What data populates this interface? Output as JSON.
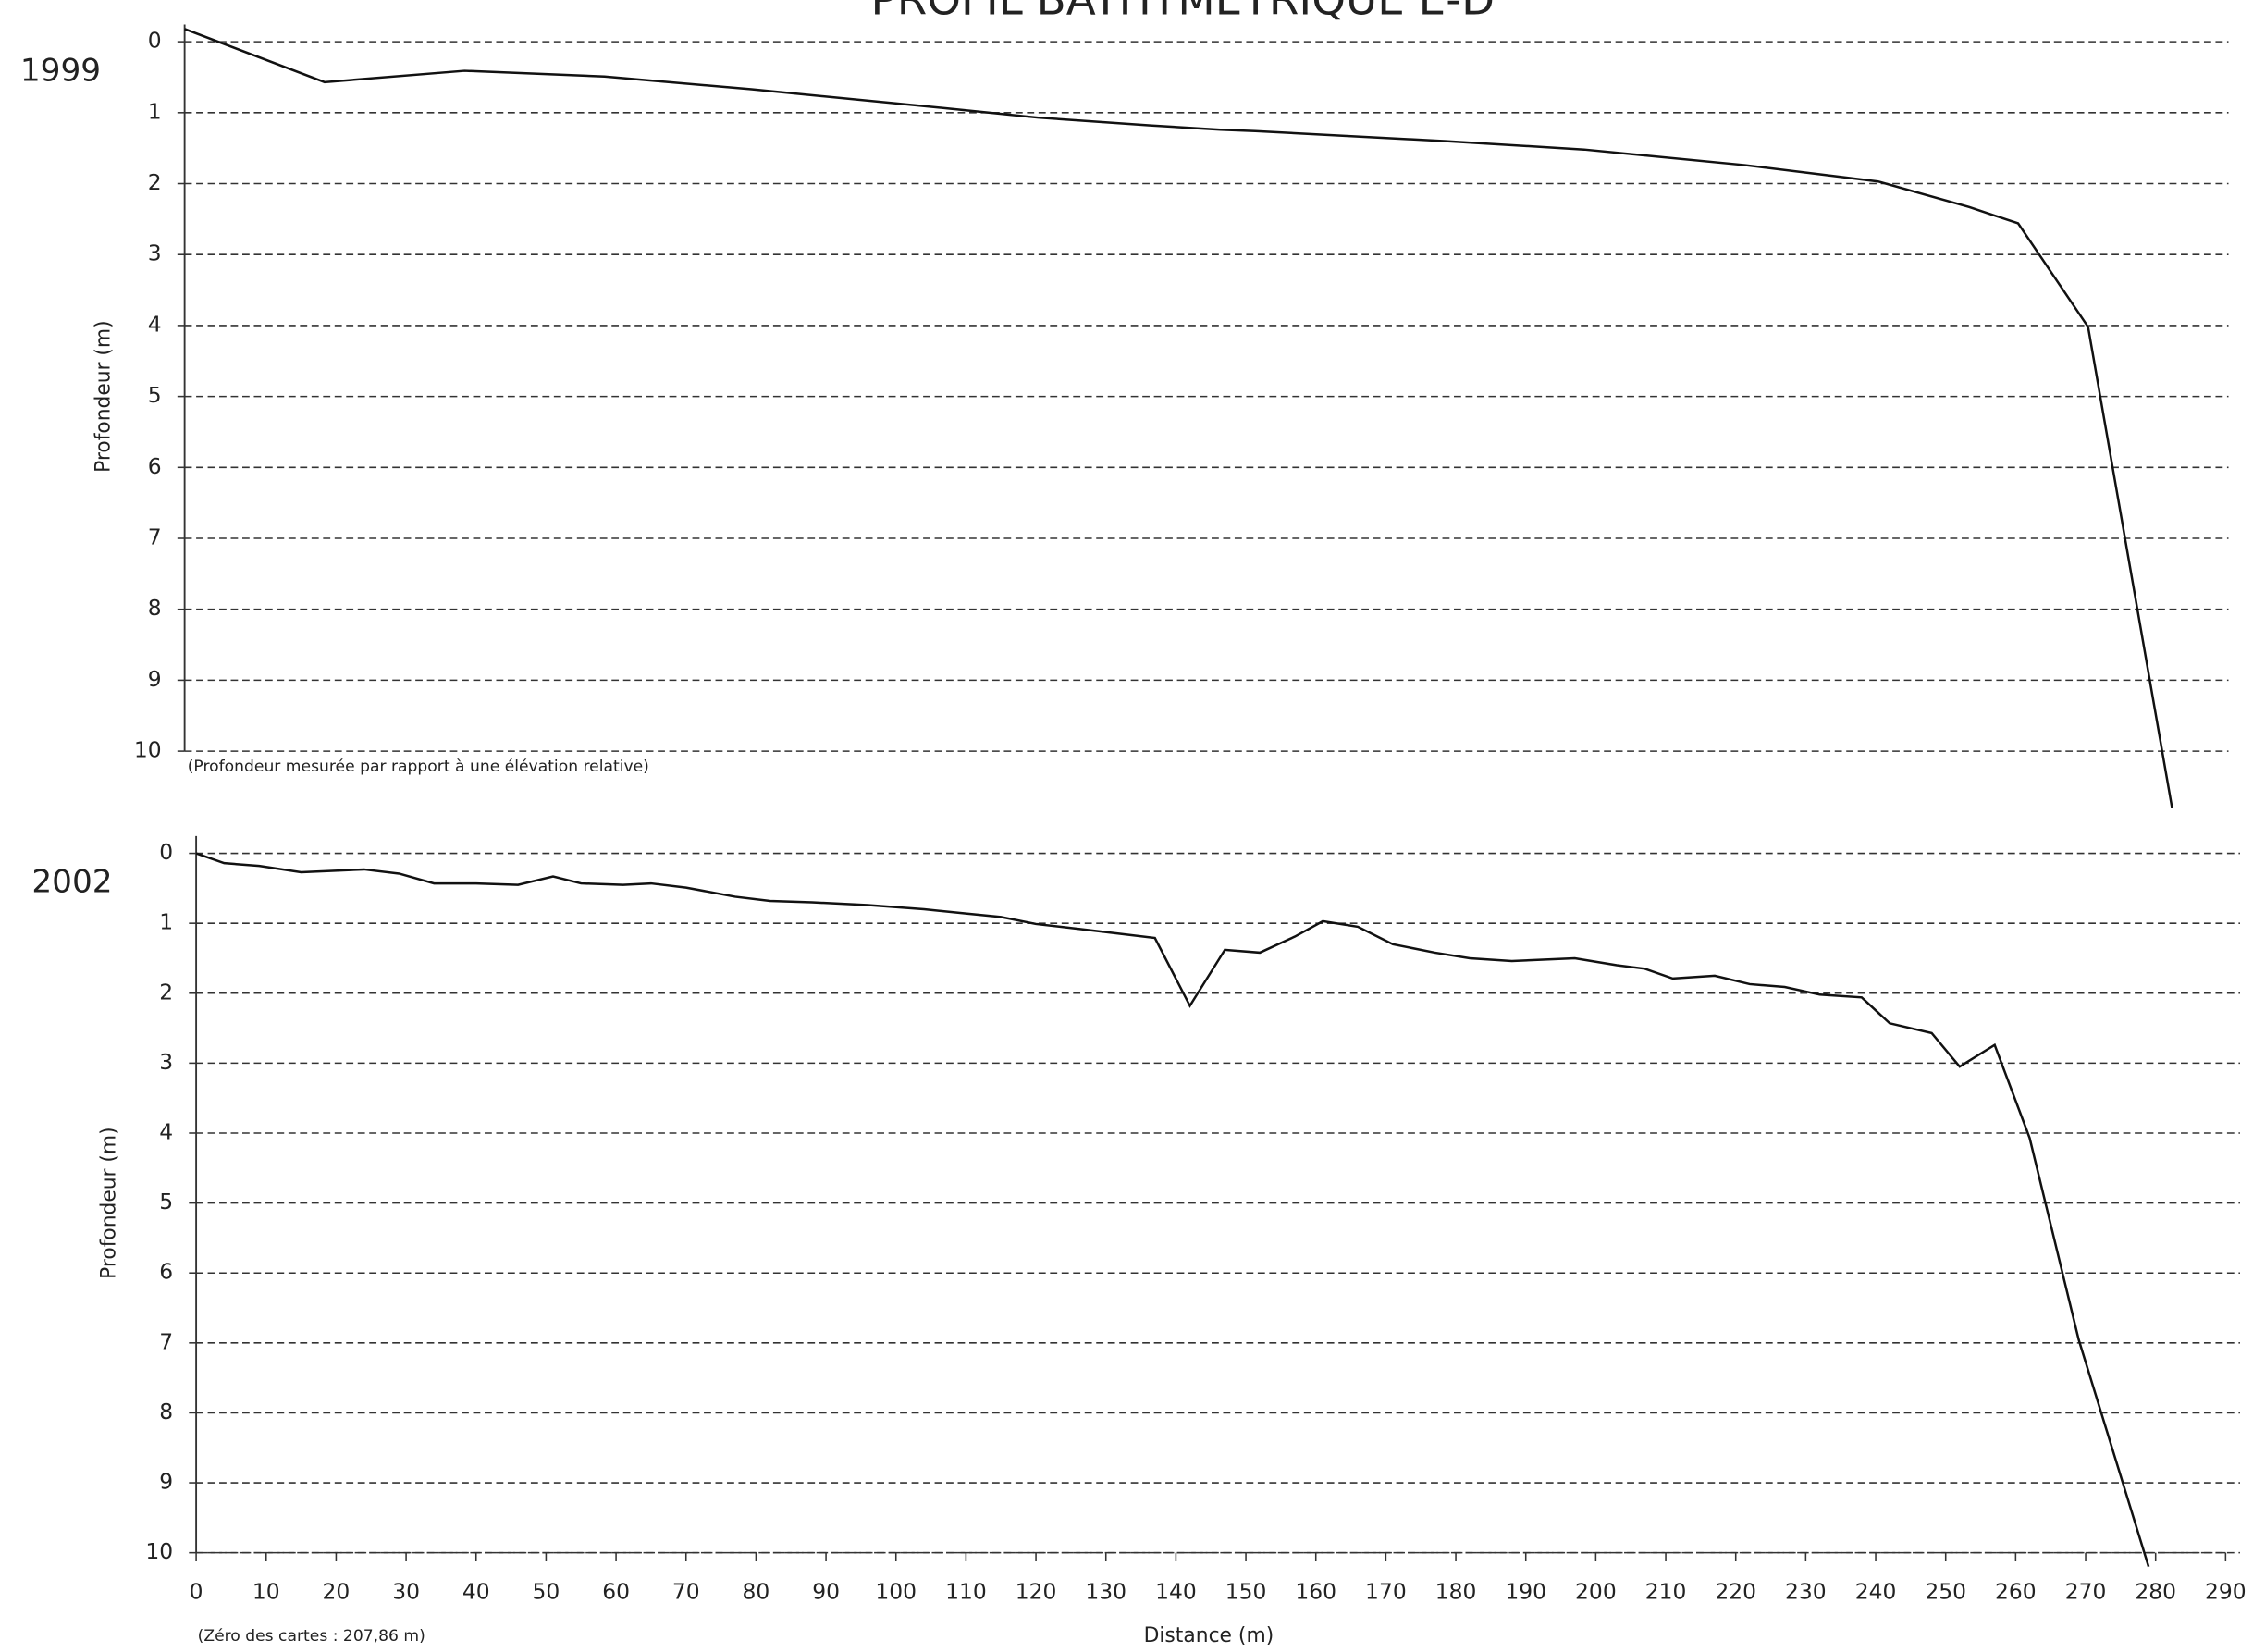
{
  "title": "PROFIL BATHYMÉTRIQUE E-D",
  "chart_data": [
    {
      "type": "line",
      "label": "1999",
      "y_label": "Profondeur (m)",
      "note": "(Profondeur mesurée par rapport à une élévation relative)",
      "x": [
        0,
        20,
        40,
        60,
        81,
        110,
        122,
        138,
        148,
        153,
        180,
        200,
        223,
        242,
        255,
        262,
        272,
        284
      ],
      "values": [
        -0.18,
        0.57,
        0.41,
        0.49,
        0.67,
        0.95,
        1.07,
        1.18,
        1.24,
        1.26,
        1.4,
        1.52,
        1.74,
        1.97,
        2.33,
        2.56,
        4.02,
        10.8
      ],
      "color": "#111111",
      "xlim": [
        0,
        290
      ],
      "ylim": [
        0,
        10
      ],
      "y_inverted": true,
      "yticks": [
        0,
        1,
        2,
        3,
        4,
        5,
        6,
        7,
        8,
        9,
        10
      ],
      "grid": true
    },
    {
      "type": "line",
      "label": "2002",
      "y_label": "Profondeur (m)",
      "x_label": "Distance (m)",
      "note": "(Zéro des cartes : 207,86 m)",
      "x": [
        0,
        4,
        9,
        15,
        24,
        29,
        34,
        40,
        46,
        51,
        55,
        61,
        65,
        70,
        77,
        82,
        88,
        96,
        104,
        110,
        115,
        120,
        127,
        132,
        137,
        142,
        147,
        152,
        157,
        161,
        166,
        171,
        177,
        182,
        188,
        197,
        203,
        207,
        211,
        217,
        222,
        227,
        232,
        238,
        242,
        248,
        252,
        257,
        262,
        269,
        279
      ],
      "values": [
        0,
        0.14,
        0.18,
        0.27,
        0.23,
        0.29,
        0.43,
        0.43,
        0.45,
        0.33,
        0.43,
        0.45,
        0.43,
        0.49,
        0.62,
        0.68,
        0.7,
        0.74,
        0.8,
        0.86,
        0.91,
        1.01,
        1.09,
        1.15,
        1.21,
        2.18,
        1.38,
        1.42,
        1.19,
        0.97,
        1.05,
        1.3,
        1.42,
        1.5,
        1.54,
        1.5,
        1.6,
        1.65,
        1.79,
        1.75,
        1.87,
        1.91,
        2.02,
        2.06,
        2.43,
        2.57,
        3.05,
        2.74,
        4.07,
        6.95,
        10.2
      ],
      "color": "#111111",
      "xlim": [
        0,
        290
      ],
      "ylim": [
        0,
        10
      ],
      "y_inverted": true,
      "xticks": [
        0,
        10,
        20,
        30,
        40,
        50,
        60,
        70,
        80,
        90,
        100,
        110,
        120,
        130,
        140,
        150,
        160,
        170,
        180,
        190,
        200,
        210,
        220,
        230,
        240,
        250,
        260,
        270,
        280,
        290
      ],
      "yticks": [
        0,
        1,
        2,
        3,
        4,
        5,
        6,
        7,
        8,
        9,
        10
      ],
      "grid": true
    }
  ]
}
